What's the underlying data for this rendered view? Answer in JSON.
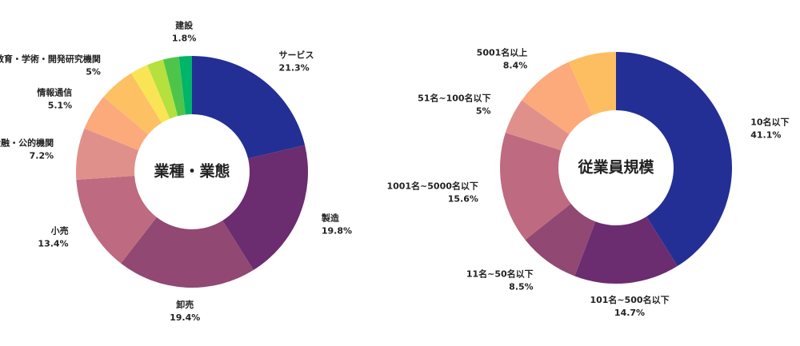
{
  "chart_data": [
    {
      "type": "donut",
      "title": "業種・業態",
      "categories": [
        "サービス",
        "製造",
        "卸売",
        "小売",
        "金融・公的機関",
        "情報通信",
        "教育・学術・開発研究機関",
        null,
        null,
        null,
        "建設"
      ],
      "values": [
        21.3,
        19.8,
        19.4,
        13.4,
        7.2,
        5.1,
        5,
        2.5,
        2.3,
        2.2,
        1.8
      ],
      "value_labels": [
        "21.3%",
        "19.8%",
        "19.4%",
        "13.4%",
        "7.2%",
        "5.1%",
        "5%",
        null,
        null,
        null,
        "1.8%"
      ],
      "colors": [
        "#232f94",
        "#6b2c70",
        "#914873",
        "#be6a80",
        "#e0908b",
        "#fca97c",
        "#fdc063",
        "#f9e456",
        "#b5e03e",
        "#4ec54a",
        "#00b46a"
      ]
    },
    {
      "type": "donut",
      "title": "従業員規模",
      "categories": [
        "10名以下",
        "101名~500名以下",
        "11名~50名以下",
        "1001名~5000名以下",
        "51名~100名以下",
        "5001名以上",
        null
      ],
      "values": [
        41.1,
        14.7,
        8.5,
        15.6,
        5,
        8.4,
        6.7
      ],
      "value_labels": [
        "41.1%",
        "14.7%",
        "8.5%",
        "15.6%",
        "5%",
        "8.4%",
        null
      ],
      "colors": [
        "#232f94",
        "#6b2c70",
        "#914873",
        "#be6a80",
        "#e0908b",
        "#fca97c",
        "#fdbe62"
      ]
    }
  ]
}
